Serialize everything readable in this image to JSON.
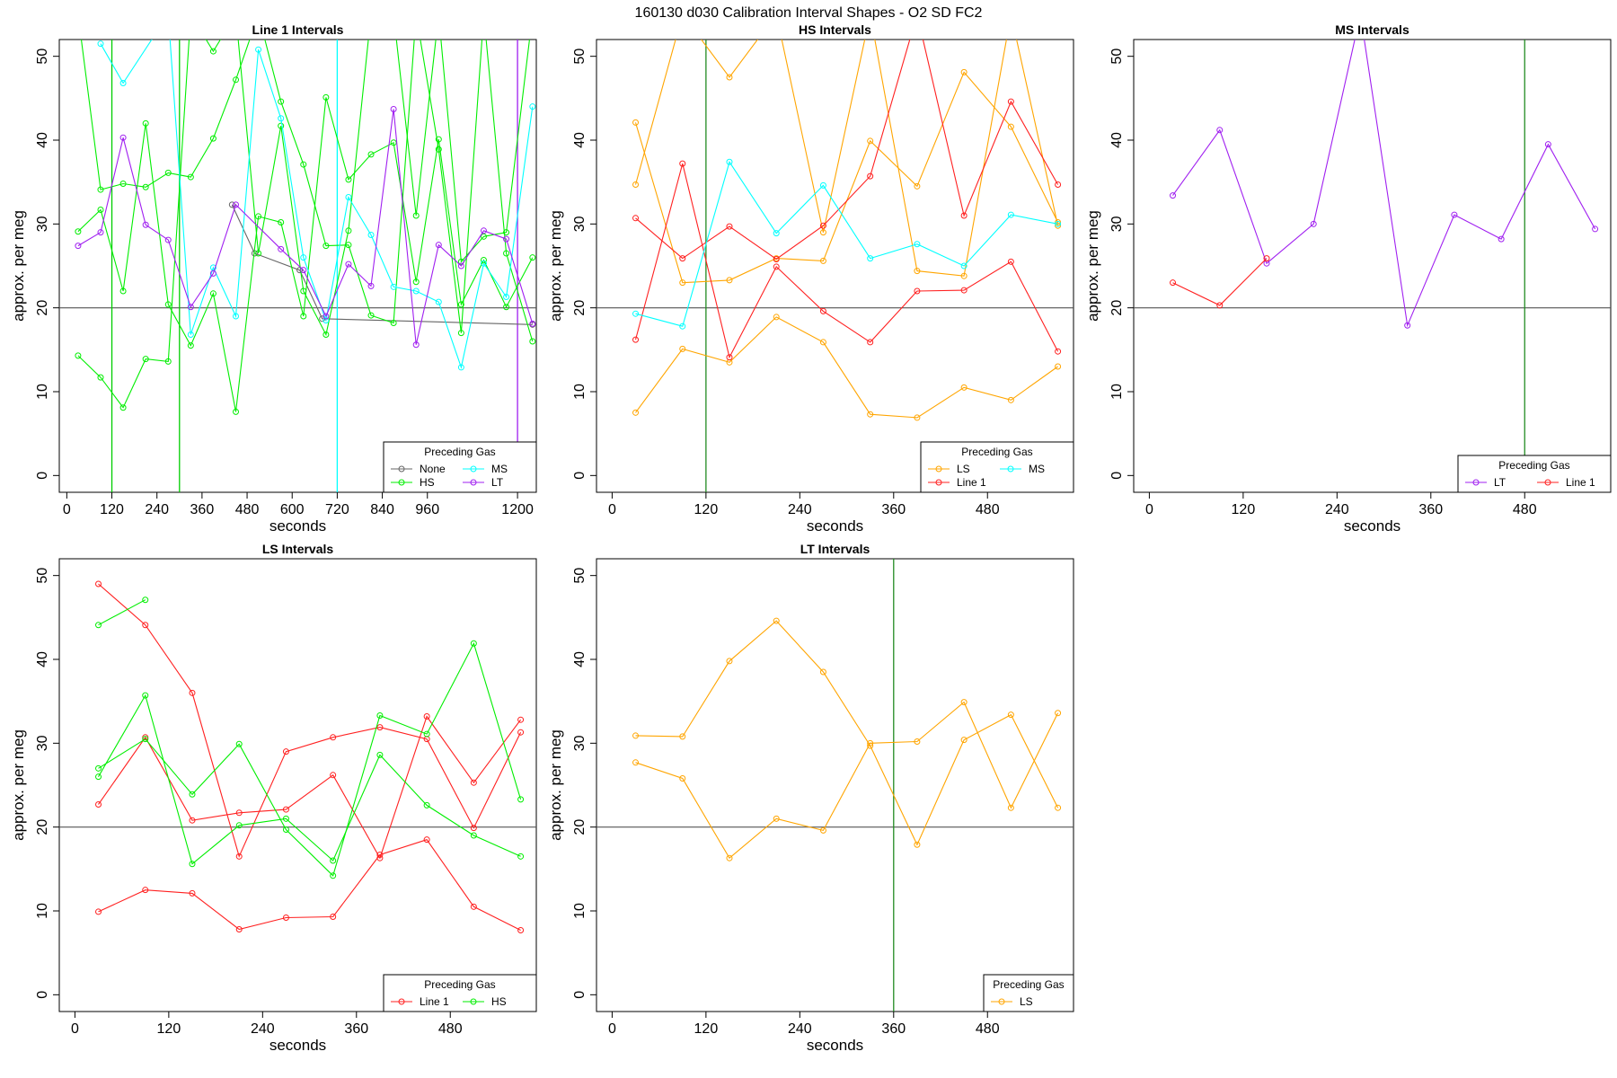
{
  "figure_title": "160130   d030   Calibration Interval Shapes - O2 SD FC2",
  "chart_data": [
    {
      "type": "line",
      "title": "Line 1 Intervals",
      "xlabel": "seconds",
      "ylabel": "approx. per meg",
      "xlim": [
        -20,
        1250
      ],
      "ylim": [
        -2,
        52
      ],
      "xticks": [
        0,
        120,
        240,
        360,
        480,
        600,
        720,
        840,
        960,
        1200
      ],
      "yticks": [
        0,
        10,
        20,
        30,
        40,
        50
      ],
      "hline": 20,
      "vlines": [
        {
          "x": 120,
          "color": "#00CD00"
        },
        {
          "x": 300,
          "color": "#00CD00"
        },
        {
          "x": 720,
          "color": "#00FFFF"
        },
        {
          "x": 1200,
          "color": "#A020F0"
        }
      ],
      "legend": {
        "title": "Preceding Gas",
        "position": "bottom-right",
        "ncol": 2,
        "entries": [
          "None",
          "HS",
          "MS",
          "LT"
        ]
      },
      "series": [
        {
          "name": "None",
          "color": "#666666",
          "x": [
            440,
            500,
            620,
            680,
            1240
          ],
          "y": [
            32.3,
            26.5,
            24.5,
            18.7,
            18.0
          ]
        },
        {
          "name": "HS",
          "color": "#00EE00",
          "x": [
            30,
            90,
            150,
            210,
            270,
            330,
            390,
            450,
            510,
            570,
            630,
            690,
            750,
            810,
            870,
            930,
            990,
            1050,
            1110,
            1170,
            1240
          ],
          "y": [
            55,
            34.1,
            34.8,
            34.4,
            36.1,
            35.6,
            40.2,
            47.2,
            55,
            44.6,
            37.1,
            27.4,
            27.5,
            19.1,
            18.2,
            55,
            38.9,
            17.0,
            55,
            26.5,
            16.0
          ]
        },
        {
          "name": "HS",
          "color": "#00EE00",
          "x": [
            30,
            90,
            150,
            210,
            270,
            330,
            390,
            450,
            510,
            570,
            630,
            690,
            750,
            810,
            870,
            930,
            990,
            1050,
            1110,
            1170,
            1240
          ],
          "y": [
            29.1,
            31.7,
            22.0,
            42.0,
            20.4,
            15.5,
            21.7,
            7.6,
            30.9,
            30.2,
            19.0,
            45.1,
            35.3,
            38.3,
            39.7,
            23.1,
            40.1,
            20.4,
            25.7,
            20.1,
            26.0
          ]
        },
        {
          "name": "HS",
          "color": "#00EE00",
          "x": [
            30,
            90,
            150,
            210,
            270,
            330,
            390,
            450,
            510,
            570,
            630,
            690,
            750,
            810,
            870,
            930,
            990,
            1050,
            1110,
            1170,
            1240
          ],
          "y": [
            14.3,
            11.7,
            8.1,
            13.9,
            13.6,
            55,
            50.6,
            55,
            26.5,
            41.7,
            22.0,
            16.8,
            29.2,
            55,
            55,
            31.0,
            55,
            25.5,
            28.5,
            29.0,
            55
          ]
        },
        {
          "name": "MS",
          "color": "#00FFFF",
          "x": [
            90,
            150,
            270,
            330,
            390,
            450,
            510,
            570,
            630,
            690,
            750,
            810,
            870,
            930,
            990,
            1050,
            1110,
            1170,
            1240
          ],
          "y": [
            51.5,
            46.8,
            55,
            16.8,
            24.8,
            19.0,
            50.8,
            42.6,
            26.0,
            18.5,
            33.2,
            28.7,
            22.5,
            22.0,
            20.7,
            12.9,
            25.3,
            21.3,
            44.0
          ]
        },
        {
          "name": "LT",
          "color": "#A020F0",
          "x": [
            30,
            90,
            150,
            210,
            270,
            330,
            390,
            450,
            570,
            630,
            690,
            750,
            810,
            870,
            930,
            990,
            1050,
            1110,
            1170,
            1240
          ],
          "y": [
            27.4,
            29.0,
            40.3,
            29.9,
            28.1,
            20.1,
            24.1,
            32.3,
            27.0,
            24.5,
            19.0,
            25.2,
            22.6,
            43.7,
            15.6,
            27.5,
            25.0,
            29.2,
            28.2,
            18.1
          ]
        }
      ]
    },
    {
      "type": "line",
      "title": "HS Intervals",
      "xlabel": "seconds",
      "ylabel": "approx. per meg",
      "xlim": [
        -20,
        590
      ],
      "ylim": [
        -2,
        52
      ],
      "xticks": [
        0,
        120,
        240,
        360,
        480
      ],
      "yticks": [
        0,
        10,
        20,
        30,
        40,
        50
      ],
      "hline": 20,
      "vlines": [
        {
          "x": 120,
          "color": "#228B22"
        }
      ],
      "legend": {
        "title": "Preceding Gas",
        "position": "bottom-right",
        "ncol": 2,
        "entries": [
          "LS",
          "Line 1",
          "MS"
        ]
      },
      "series": [
        {
          "name": "LS",
          "color": "#FFA500",
          "x": [
            30,
            90,
            150,
            210,
            270,
            330,
            390,
            450,
            510,
            570
          ],
          "y": [
            42.1,
            23.0,
            23.3,
            25.9,
            25.6,
            39.9,
            34.5,
            48.1,
            41.6,
            30.2
          ]
        },
        {
          "name": "LS",
          "color": "#FFA500",
          "x": [
            30,
            90,
            150,
            210,
            270,
            330,
            390,
            450,
            510,
            570
          ],
          "y": [
            34.7,
            55,
            47.5,
            55,
            29.0,
            55,
            24.4,
            23.8,
            55,
            29.8
          ]
        },
        {
          "name": "LS",
          "color": "#FFA500",
          "x": [
            30,
            90,
            150,
            210,
            270,
            330,
            390,
            450,
            510,
            570
          ],
          "y": [
            7.5,
            15.1,
            13.5,
            18.9,
            15.9,
            7.3,
            6.9,
            10.5,
            9.0,
            13.0
          ]
        },
        {
          "name": "Line 1",
          "color": "#FF2020",
          "x": [
            30,
            90,
            150,
            210,
            270,
            330,
            390,
            450,
            510,
            570
          ],
          "y": [
            30.7,
            25.9,
            29.7,
            25.8,
            29.8,
            35.7,
            55,
            31.0,
            44.6,
            34.7
          ]
        },
        {
          "name": "Line 1",
          "color": "#FF2020",
          "x": [
            30,
            90,
            150,
            210,
            270,
            330,
            390,
            450,
            510,
            570
          ],
          "y": [
            16.2,
            37.2,
            14.1,
            24.9,
            19.6,
            15.9,
            22.0,
            22.1,
            25.5,
            14.8
          ]
        },
        {
          "name": "MS",
          "color": "#00FFFF",
          "x": [
            30,
            90,
            150,
            210,
            270,
            330,
            390,
            450,
            510,
            570
          ],
          "y": [
            19.3,
            17.8,
            37.4,
            28.9,
            34.6,
            25.9,
            27.6,
            25.0,
            31.1,
            30.0
          ]
        }
      ]
    },
    {
      "type": "line",
      "title": "MS Intervals",
      "xlabel": "seconds",
      "ylabel": "approx. per meg",
      "xlim": [
        -20,
        590
      ],
      "ylim": [
        -2,
        52
      ],
      "xticks": [
        0,
        120,
        240,
        360,
        480
      ],
      "yticks": [
        0,
        10,
        20,
        30,
        40,
        50
      ],
      "hline": 20,
      "vlines": [
        {
          "x": 480,
          "color": "#228B22"
        }
      ],
      "legend": {
        "title": "Preceding Gas",
        "position": "bottom-right",
        "ncol": 2,
        "entries": [
          "LT",
          "Line 1"
        ]
      },
      "series": [
        {
          "name": "LT",
          "color": "#A020F0",
          "x": [
            30,
            90,
            150,
            210,
            270,
            330,
            390,
            450,
            510,
            570
          ],
          "y": [
            33.4,
            41.2,
            25.3,
            30.0,
            55,
            17.9,
            31.1,
            28.2,
            39.5,
            29.4
          ]
        },
        {
          "name": "Line 1",
          "color": "#FF2020",
          "x": [
            30,
            90,
            150
          ],
          "y": [
            23.0,
            20.3,
            25.9
          ]
        }
      ]
    },
    {
      "type": "line",
      "title": "LS Intervals",
      "xlabel": "seconds",
      "ylabel": "approx. per meg",
      "xlim": [
        -20,
        590
      ],
      "ylim": [
        -2,
        52
      ],
      "xticks": [
        0,
        120,
        240,
        360,
        480
      ],
      "yticks": [
        0,
        10,
        20,
        30,
        40,
        50
      ],
      "hline": 20,
      "vlines": [],
      "legend": {
        "title": "Preceding Gas",
        "position": "bottom-right",
        "ncol": 2,
        "entries": [
          "Line 1",
          "HS"
        ]
      },
      "series": [
        {
          "name": "Line 1",
          "color": "#FF2020",
          "x": [
            30,
            90,
            150,
            210,
            270,
            330,
            390,
            450,
            510,
            570
          ],
          "y": [
            49.0,
            44.1,
            36.0,
            16.5,
            29.0,
            30.7,
            31.9,
            30.5,
            19.9,
            31.3
          ]
        },
        {
          "name": "Line 1",
          "color": "#FF2020",
          "x": [
            30,
            90,
            150,
            210,
            270,
            330,
            390,
            450,
            510,
            570
          ],
          "y": [
            22.7,
            30.7,
            20.8,
            21.7,
            22.1,
            26.2,
            16.3,
            33.2,
            25.3,
            32.8
          ]
        },
        {
          "name": "Line 1",
          "color": "#FF2020",
          "x": [
            30,
            90,
            150,
            210,
            270,
            330,
            390,
            450,
            510,
            570
          ],
          "y": [
            9.9,
            12.5,
            12.1,
            7.8,
            9.2,
            9.3,
            16.7,
            18.5,
            10.5,
            7.7
          ]
        },
        {
          "name": "HS",
          "color": "#00EE00",
          "x": [
            30,
            90
          ],
          "y": [
            44.1,
            47.1
          ]
        },
        {
          "name": "HS",
          "color": "#00EE00",
          "x": [
            30,
            90,
            150,
            210,
            270,
            330,
            390,
            450,
            510,
            570
          ],
          "y": [
            27.0,
            30.5,
            23.9,
            29.9,
            19.7,
            14.2,
            33.3,
            31.1,
            41.9,
            23.3
          ]
        },
        {
          "name": "HS",
          "color": "#00EE00",
          "x": [
            30,
            90,
            150,
            210,
            270,
            330,
            390,
            450,
            510,
            570
          ],
          "y": [
            26.0,
            35.7,
            15.6,
            20.2,
            21.0,
            16.0,
            28.6,
            22.6,
            19.0,
            16.5
          ]
        }
      ]
    },
    {
      "type": "line",
      "title": "LT Intervals",
      "xlabel": "seconds",
      "ylabel": "approx. per meg",
      "xlim": [
        -20,
        590
      ],
      "ylim": [
        -2,
        52
      ],
      "xticks": [
        0,
        120,
        240,
        360,
        480
      ],
      "yticks": [
        0,
        10,
        20,
        30,
        40,
        50
      ],
      "hline": 20,
      "vlines": [
        {
          "x": 360,
          "color": "#228B22"
        }
      ],
      "legend": {
        "title": "Preceding Gas",
        "position": "bottom-right",
        "ncol": 1,
        "entries": [
          "LS"
        ]
      },
      "series": [
        {
          "name": "LS",
          "color": "#FFA500",
          "x": [
            30,
            90,
            150,
            210,
            270,
            330,
            390,
            450,
            510,
            570
          ],
          "y": [
            30.9,
            30.8,
            39.8,
            44.6,
            38.5,
            29.7,
            17.9,
            30.4,
            33.4,
            22.3
          ]
        },
        {
          "name": "LS",
          "color": "#FFA500",
          "x": [
            30,
            90,
            150,
            210,
            270,
            330,
            390,
            450,
            510,
            570
          ],
          "y": [
            27.7,
            25.8,
            16.3,
            21.0,
            19.6,
            30.0,
            30.2,
            34.9,
            22.3,
            33.6
          ]
        }
      ]
    }
  ]
}
